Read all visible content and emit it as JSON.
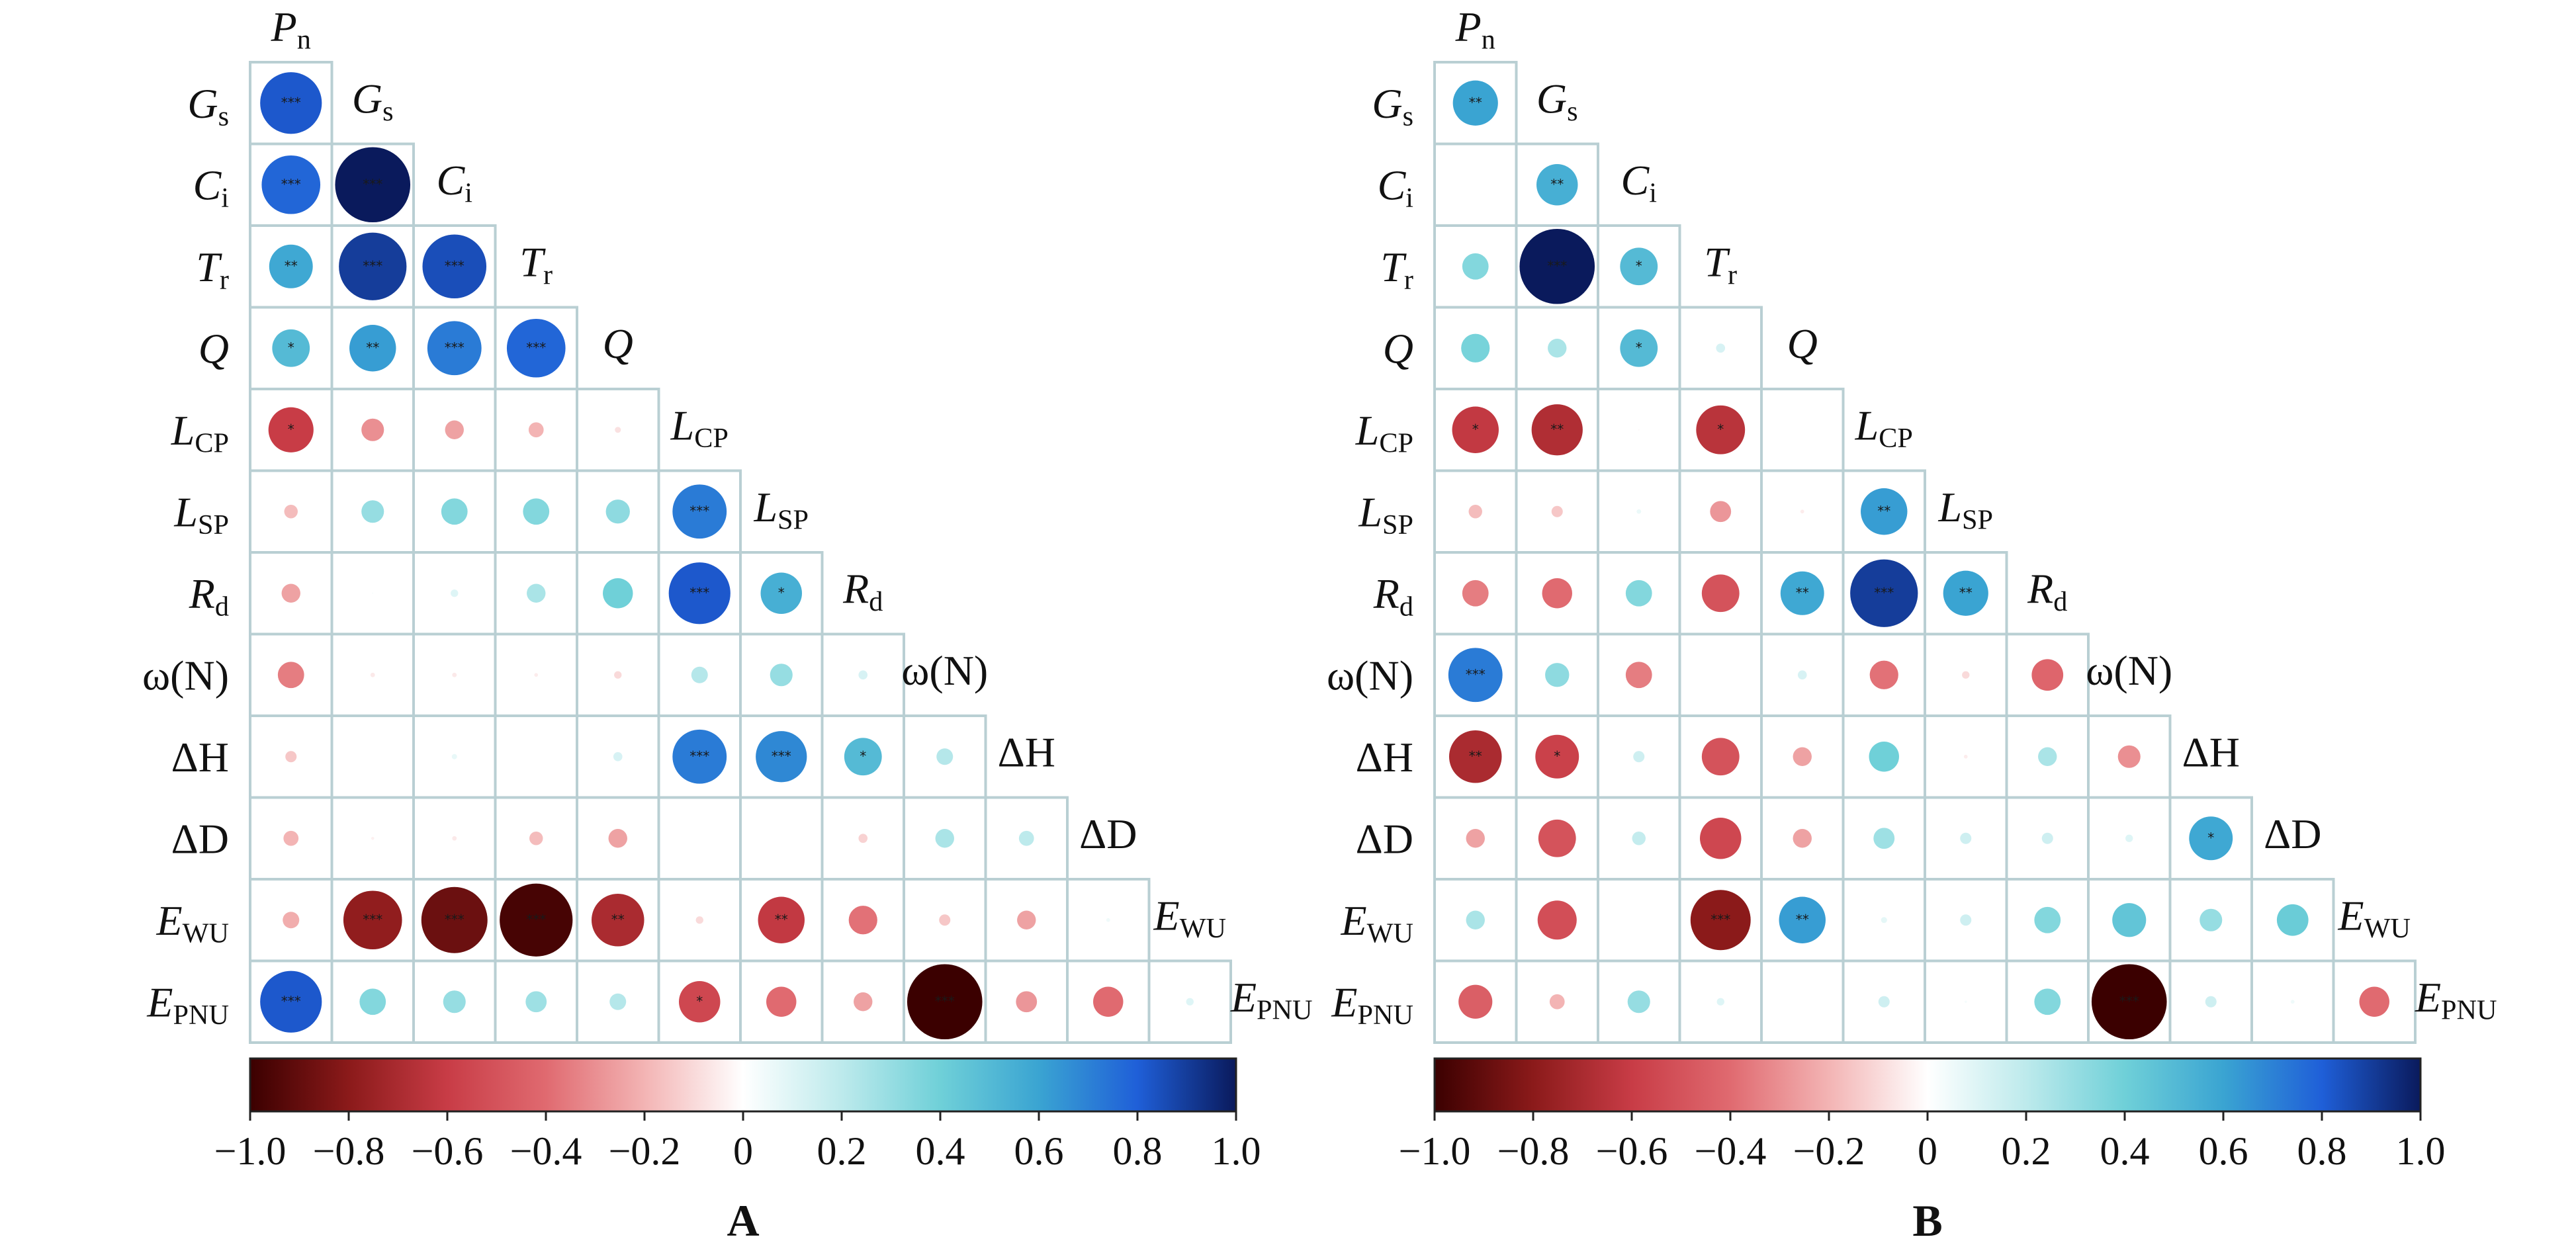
{
  "variables": [
    {
      "main": "P",
      "sub": "n",
      "italic": true
    },
    {
      "main": "G",
      "sub": "s",
      "italic": true
    },
    {
      "main": "C",
      "sub": "i",
      "italic": true
    },
    {
      "main": "T",
      "sub": "r",
      "italic": true
    },
    {
      "main": "Q",
      "sub": "",
      "italic": true
    },
    {
      "main": "L",
      "sub": "CP",
      "italic": true
    },
    {
      "main": "L",
      "sub": "SP",
      "italic": true
    },
    {
      "main": "R",
      "sub": "d",
      "italic": true
    },
    {
      "main": "ω(N)",
      "sub": "",
      "italic": false
    },
    {
      "main": "ΔH",
      "sub": "",
      "italic": false
    },
    {
      "main": "ΔD",
      "sub": "",
      "italic": false
    },
    {
      "main": "E",
      "sub": "WU",
      "italic": true
    },
    {
      "main": "E",
      "sub": "PNU",
      "italic": true
    }
  ],
  "colorbar": {
    "ticks": [
      "−1.0",
      "−0.8",
      "−0.6",
      "−0.4",
      "−0.2",
      "0",
      "0.2",
      "0.4",
      "0.6",
      "0.8",
      "1.0"
    ],
    "stops": [
      {
        "v": -1.0,
        "color": "#3b0000"
      },
      {
        "v": -0.8,
        "color": "#8b1a1a"
      },
      {
        "v": -0.6,
        "color": "#c83c46"
      },
      {
        "v": -0.4,
        "color": "#e06a70"
      },
      {
        "v": -0.2,
        "color": "#f3b4b4"
      },
      {
        "v": 0.0,
        "color": "#ffffff"
      },
      {
        "v": 0.2,
        "color": "#bdeaec"
      },
      {
        "v": 0.4,
        "color": "#6fd0d8"
      },
      {
        "v": 0.6,
        "color": "#3aa4d2"
      },
      {
        "v": 0.8,
        "color": "#1f5fd8"
      },
      {
        "v": 1.0,
        "color": "#0a1a5c"
      }
    ]
  },
  "chart_data": [
    {
      "type": "heatmap",
      "panel": "A",
      "variables": [
        "Pn",
        "Gs",
        "Ci",
        "Tr",
        "Q",
        "LCP",
        "LSP",
        "Rd",
        "ω(N)",
        "ΔH",
        "ΔD",
        "EWU",
        "EPNU"
      ],
      "note": "Lower-triangle correlation matrix; rows/cols in order of variables; circle size and colour encode r; stars mark significance.",
      "matrix": [
        [
          {
            "r": 0.82,
            "sig": "***"
          }
        ],
        [
          {
            "r": 0.78,
            "sig": "***"
          },
          {
            "r": 1.0,
            "sig": "***"
          }
        ],
        [
          {
            "r": 0.58,
            "sig": "**"
          },
          {
            "r": 0.9,
            "sig": "***"
          },
          {
            "r": 0.85,
            "sig": "***"
          }
        ],
        [
          {
            "r": 0.5,
            "sig": "*"
          },
          {
            "r": 0.62,
            "sig": "**"
          },
          {
            "r": 0.72,
            "sig": "***"
          },
          {
            "r": 0.78,
            "sig": "***"
          }
        ],
        [
          {
            "r": -0.6,
            "sig": "*"
          },
          {
            "r": -0.3,
            "sig": ""
          },
          {
            "r": -0.25,
            "sig": ""
          },
          {
            "r": -0.2,
            "sig": ""
          },
          {
            "r": -0.08,
            "sig": ""
          }
        ],
        [
          {
            "r": -0.18,
            "sig": ""
          },
          {
            "r": 0.3,
            "sig": ""
          },
          {
            "r": 0.35,
            "sig": ""
          },
          {
            "r": 0.35,
            "sig": ""
          },
          {
            "r": 0.32,
            "sig": ""
          },
          {
            "r": 0.72,
            "sig": "***"
          }
        ],
        [
          {
            "r": -0.25,
            "sig": ""
          },
          {
            "r": 0.02,
            "sig": ""
          },
          {
            "r": 0.1,
            "sig": ""
          },
          {
            "r": 0.25,
            "sig": ""
          },
          {
            "r": 0.4,
            "sig": ""
          },
          {
            "r": 0.82,
            "sig": "***"
          },
          {
            "r": 0.55,
            "sig": "*"
          }
        ],
        [
          {
            "r": -0.35,
            "sig": ""
          },
          {
            "r": -0.06,
            "sig": ""
          },
          {
            "r": -0.06,
            "sig": ""
          },
          {
            "r": -0.05,
            "sig": ""
          },
          {
            "r": -0.1,
            "sig": ""
          },
          {
            "r": 0.22,
            "sig": ""
          },
          {
            "r": 0.3,
            "sig": ""
          },
          {
            "r": 0.12,
            "sig": ""
          }
        ],
        [
          {
            "r": -0.15,
            "sig": ""
          },
          {
            "r": 0.0,
            "sig": ""
          },
          {
            "r": 0.07,
            "sig": ""
          },
          {
            "r": 0.0,
            "sig": ""
          },
          {
            "r": 0.12,
            "sig": ""
          },
          {
            "r": 0.72,
            "sig": "***"
          },
          {
            "r": 0.68,
            "sig": "***"
          },
          {
            "r": 0.5,
            "sig": "*"
          },
          {
            "r": 0.22,
            "sig": ""
          }
        ],
        [
          {
            "r": -0.2,
            "sig": ""
          },
          {
            "r": -0.04,
            "sig": ""
          },
          {
            "r": -0.06,
            "sig": ""
          },
          {
            "r": -0.18,
            "sig": ""
          },
          {
            "r": -0.25,
            "sig": ""
          },
          {
            "r": 0.0,
            "sig": ""
          },
          {
            "r": 0.0,
            "sig": ""
          },
          {
            "r": -0.12,
            "sig": ""
          },
          {
            "r": 0.25,
            "sig": ""
          },
          {
            "r": 0.2,
            "sig": ""
          }
        ],
        [
          {
            "r": -0.22,
            "sig": ""
          },
          {
            "r": -0.78,
            "sig": "***"
          },
          {
            "r": -0.88,
            "sig": "***"
          },
          {
            "r": -0.97,
            "sig": "***"
          },
          {
            "r": -0.7,
            "sig": "**"
          },
          {
            "r": -0.1,
            "sig": ""
          },
          {
            "r": -0.62,
            "sig": "**"
          },
          {
            "r": -0.38,
            "sig": ""
          },
          {
            "r": -0.15,
            "sig": ""
          },
          {
            "r": -0.25,
            "sig": ""
          },
          {
            "r": 0.05,
            "sig": ""
          }
        ],
        [
          {
            "r": 0.82,
            "sig": "***"
          },
          {
            "r": 0.35,
            "sig": ""
          },
          {
            "r": 0.3,
            "sig": ""
          },
          {
            "r": 0.28,
            "sig": ""
          },
          {
            "r": 0.22,
            "sig": ""
          },
          {
            "r": -0.55,
            "sig": "*"
          },
          {
            "r": -0.4,
            "sig": ""
          },
          {
            "r": -0.25,
            "sig": ""
          },
          {
            "r": -1.0,
            "sig": "***"
          },
          {
            "r": -0.28,
            "sig": ""
          },
          {
            "r": -0.4,
            "sig": ""
          },
          {
            "r": 0.1,
            "sig": ""
          }
        ]
      ]
    },
    {
      "type": "heatmap",
      "panel": "B",
      "variables": [
        "Pn",
        "Gs",
        "Ci",
        "Tr",
        "Q",
        "LCP",
        "LSP",
        "Rd",
        "ω(N)",
        "ΔH",
        "ΔD",
        "EWU",
        "EPNU"
      ],
      "note": "Lower-triangle correlation matrix; rows/cols in order of variables; circle size and colour encode r; stars mark significance.",
      "matrix": [
        [
          {
            "r": 0.6,
            "sig": "**"
          }
        ],
        [
          {
            "r": 0.0,
            "sig": ""
          },
          {
            "r": 0.55,
            "sig": "**"
          }
        ],
        [
          {
            "r": 0.35,
            "sig": ""
          },
          {
            "r": 1.0,
            "sig": "***"
          },
          {
            "r": 0.5,
            "sig": "*"
          }
        ],
        [
          {
            "r": 0.38,
            "sig": ""
          },
          {
            "r": 0.25,
            "sig": ""
          },
          {
            "r": 0.5,
            "sig": "*"
          },
          {
            "r": 0.12,
            "sig": ""
          }
        ],
        [
          {
            "r": -0.62,
            "sig": "*"
          },
          {
            "r": -0.68,
            "sig": "**"
          },
          {
            "r": -0.02,
            "sig": ""
          },
          {
            "r": -0.65,
            "sig": "*"
          },
          {
            "r": 0.0,
            "sig": ""
          }
        ],
        [
          {
            "r": -0.18,
            "sig": ""
          },
          {
            "r": -0.15,
            "sig": ""
          },
          {
            "r": 0.06,
            "sig": ""
          },
          {
            "r": -0.28,
            "sig": ""
          },
          {
            "r": -0.05,
            "sig": ""
          },
          {
            "r": 0.62,
            "sig": "**"
          }
        ],
        [
          {
            "r": -0.35,
            "sig": ""
          },
          {
            "r": -0.4,
            "sig": ""
          },
          {
            "r": 0.35,
            "sig": ""
          },
          {
            "r": -0.5,
            "sig": ""
          },
          {
            "r": 0.58,
            "sig": "**"
          },
          {
            "r": 0.9,
            "sig": "***"
          },
          {
            "r": 0.6,
            "sig": "**"
          }
        ],
        [
          {
            "r": 0.72,
            "sig": "***"
          },
          {
            "r": 0.32,
            "sig": ""
          },
          {
            "r": -0.35,
            "sig": ""
          },
          {
            "r": 0.0,
            "sig": ""
          },
          {
            "r": 0.12,
            "sig": ""
          },
          {
            "r": -0.38,
            "sig": ""
          },
          {
            "r": -0.1,
            "sig": ""
          },
          {
            "r": -0.42,
            "sig": ""
          }
        ],
        [
          {
            "r": -0.7,
            "sig": "**"
          },
          {
            "r": -0.58,
            "sig": "*"
          },
          {
            "r": 0.15,
            "sig": ""
          },
          {
            "r": -0.5,
            "sig": ""
          },
          {
            "r": -0.25,
            "sig": ""
          },
          {
            "r": 0.4,
            "sig": ""
          },
          {
            "r": -0.05,
            "sig": ""
          },
          {
            "r": 0.25,
            "sig": ""
          },
          {
            "r": -0.3,
            "sig": ""
          }
        ],
        [
          {
            "r": -0.25,
            "sig": ""
          },
          {
            "r": -0.5,
            "sig": ""
          },
          {
            "r": 0.18,
            "sig": ""
          },
          {
            "r": -0.55,
            "sig": ""
          },
          {
            "r": -0.25,
            "sig": ""
          },
          {
            "r": 0.28,
            "sig": ""
          },
          {
            "r": 0.15,
            "sig": ""
          },
          {
            "r": 0.15,
            "sig": ""
          },
          {
            "r": 0.1,
            "sig": ""
          },
          {
            "r": 0.58,
            "sig": "*"
          }
        ],
        [
          {
            "r": 0.25,
            "sig": ""
          },
          {
            "r": -0.52,
            "sig": ""
          },
          {
            "r": 0.0,
            "sig": ""
          },
          {
            "r": -0.8,
            "sig": "***"
          },
          {
            "r": 0.62,
            "sig": "**"
          },
          {
            "r": 0.08,
            "sig": ""
          },
          {
            "r": 0.15,
            "sig": ""
          },
          {
            "r": 0.35,
            "sig": ""
          },
          {
            "r": 0.45,
            "sig": ""
          },
          {
            "r": 0.3,
            "sig": ""
          },
          {
            "r": 0.42,
            "sig": ""
          }
        ],
        [
          {
            "r": -0.45,
            "sig": ""
          },
          {
            "r": -0.2,
            "sig": ""
          },
          {
            "r": 0.3,
            "sig": ""
          },
          {
            "r": 0.1,
            "sig": ""
          },
          {
            "r": 0.0,
            "sig": ""
          },
          {
            "r": 0.15,
            "sig": ""
          },
          {
            "r": 0.03,
            "sig": ""
          },
          {
            "r": 0.35,
            "sig": ""
          },
          {
            "r": -1.0,
            "sig": "***"
          },
          {
            "r": 0.15,
            "sig": ""
          },
          {
            "r": 0.05,
            "sig": ""
          },
          {
            "r": -0.4,
            "sig": ""
          }
        ]
      ]
    }
  ]
}
